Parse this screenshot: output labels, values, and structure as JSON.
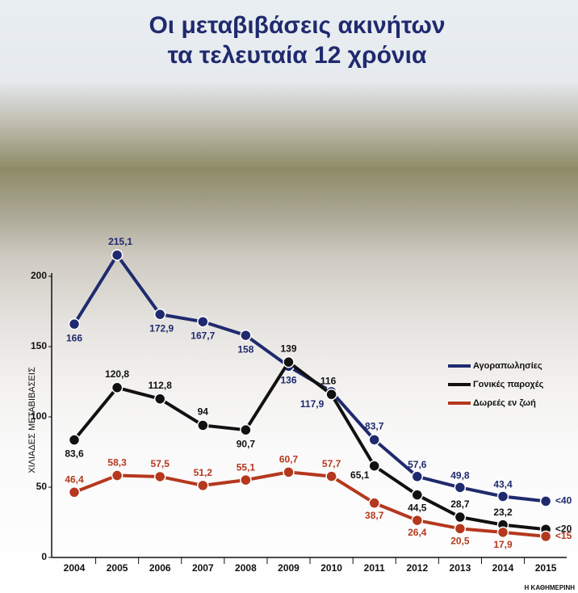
{
  "title": "Οι μεταβιβάσεις ακινήτων",
  "subtitle": "τα τελευταία 12 χρόνια",
  "source": "Η ΚΑΘΗΜΕΡΙΝΗ",
  "chart_data": {
    "type": "line",
    "y_label": "ΧΙΛΙΑΔΕΣ ΜΕΤΑΒΙΒΑΣΕΙΣ",
    "categories": [
      "2004",
      "2005",
      "2006",
      "2007",
      "2008",
      "2009",
      "2010",
      "2011",
      "2012",
      "2013",
      "2014",
      "2015"
    ],
    "ylim": [
      0,
      200
    ],
    "yticks": [
      0,
      50,
      100,
      150,
      200
    ],
    "grid": false,
    "legend": "right",
    "series": [
      {
        "name": "Αγοραπωλησίες",
        "color": "#1f2a6e",
        "values": [
          166,
          215.1,
          172.9,
          167.7,
          158,
          136,
          117.9,
          83.7,
          57.6,
          49.8,
          43.4,
          40
        ],
        "value_labels": [
          "166",
          "215,1",
          "172,9",
          "167,7",
          "158",
          "136",
          "117,9",
          "83,7",
          "57,6",
          "49,8",
          "43,4",
          "<40"
        ]
      },
      {
        "name": "Γονικές παροχές",
        "color": "#111111",
        "values": [
          83.6,
          120.8,
          112.8,
          94,
          90.7,
          139,
          116,
          65.1,
          44.5,
          28.7,
          23.2,
          20
        ],
        "value_labels": [
          "83,6",
          "120,8",
          "112,8",
          "94",
          "90,7",
          "139",
          "116",
          "65,1",
          "44,5",
          "28,7",
          "23,2",
          "<20"
        ]
      },
      {
        "name": "Δωρεές εν ζωή",
        "color": "#b5381e",
        "values": [
          46.4,
          58.3,
          57.5,
          51.2,
          55.1,
          60.7,
          57.7,
          38.7,
          26.4,
          20.5,
          17.9,
          15
        ],
        "value_labels": [
          "46,4",
          "58,3",
          "57,5",
          "51,2",
          "55,1",
          "60,7",
          "57,7",
          "38,7",
          "26,4",
          "20,5",
          "17,9",
          "<15"
        ]
      }
    ]
  }
}
